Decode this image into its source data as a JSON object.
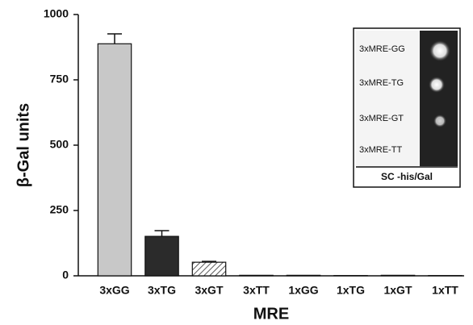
{
  "chart_data": {
    "type": "bar",
    "x_label": "MRE",
    "y_label": "β-Gal units",
    "categories": [
      "3xGG",
      "3xTG",
      "3xGT",
      "3xTT",
      "1xGG",
      "1xTG",
      "1xGT",
      "1xTT"
    ],
    "values": [
      888,
      151,
      52,
      2,
      2,
      1,
      2,
      1
    ],
    "errors": [
      38,
      22,
      3,
      0,
      0,
      0,
      0,
      0
    ],
    "colors": [
      "#c8c8c8",
      "#2b2b2b",
      "hatch",
      "#c8c8c8",
      "#c8c8c8",
      "#c8c8c8",
      "#c8c8c8",
      "#c8c8c8"
    ],
    "ylim": [
      0,
      1000
    ],
    "yticks": [
      0,
      250,
      500,
      750,
      1000
    ],
    "inset": {
      "labels": [
        "3xMRE-GG",
        "3xMRE-TG",
        "3xMRE-GT",
        "3xMRE-TT"
      ],
      "caption": "SC -his/Gal"
    }
  }
}
